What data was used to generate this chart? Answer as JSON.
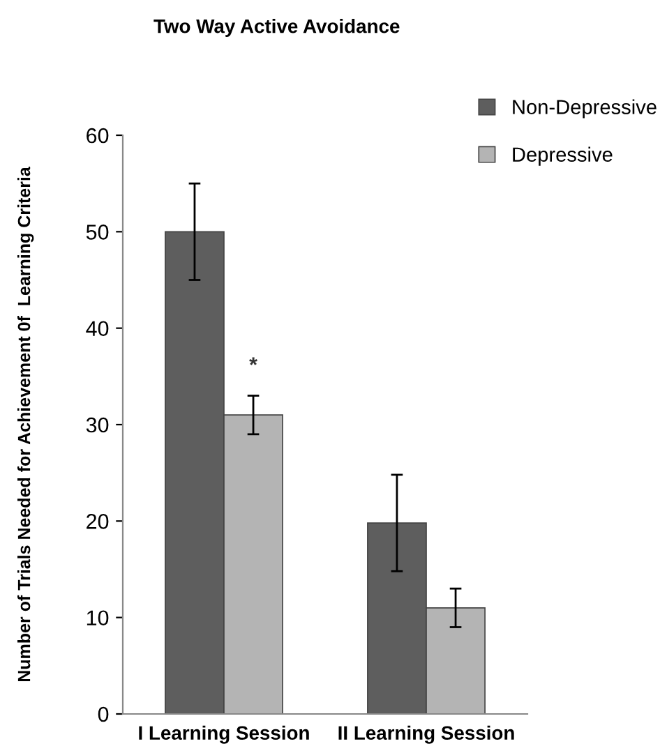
{
  "chart_data": {
    "type": "bar",
    "title": "Two Way Active Avoidance",
    "ylabel": "Number of Trials Needed for Achievement 0f  Learning Criteria",
    "categories": [
      "I Learning Session",
      "II Learning Session"
    ],
    "series": [
      {
        "name": "Non-Depressive",
        "color": "#5e5e5e",
        "values": [
          50,
          19.8
        ],
        "errors": [
          5,
          5
        ]
      },
      {
        "name": "Depressive",
        "color": "#b4b4b4",
        "values": [
          31,
          11
        ],
        "errors": [
          2,
          2
        ]
      }
    ],
    "annotations": [
      {
        "text": "*",
        "x": "I Learning Session",
        "y": 35
      }
    ],
    "ylim": [
      0,
      60
    ],
    "yticks": [
      0,
      10,
      20,
      30,
      40,
      50,
      60
    ],
    "grid": false,
    "legend": "top right"
  }
}
